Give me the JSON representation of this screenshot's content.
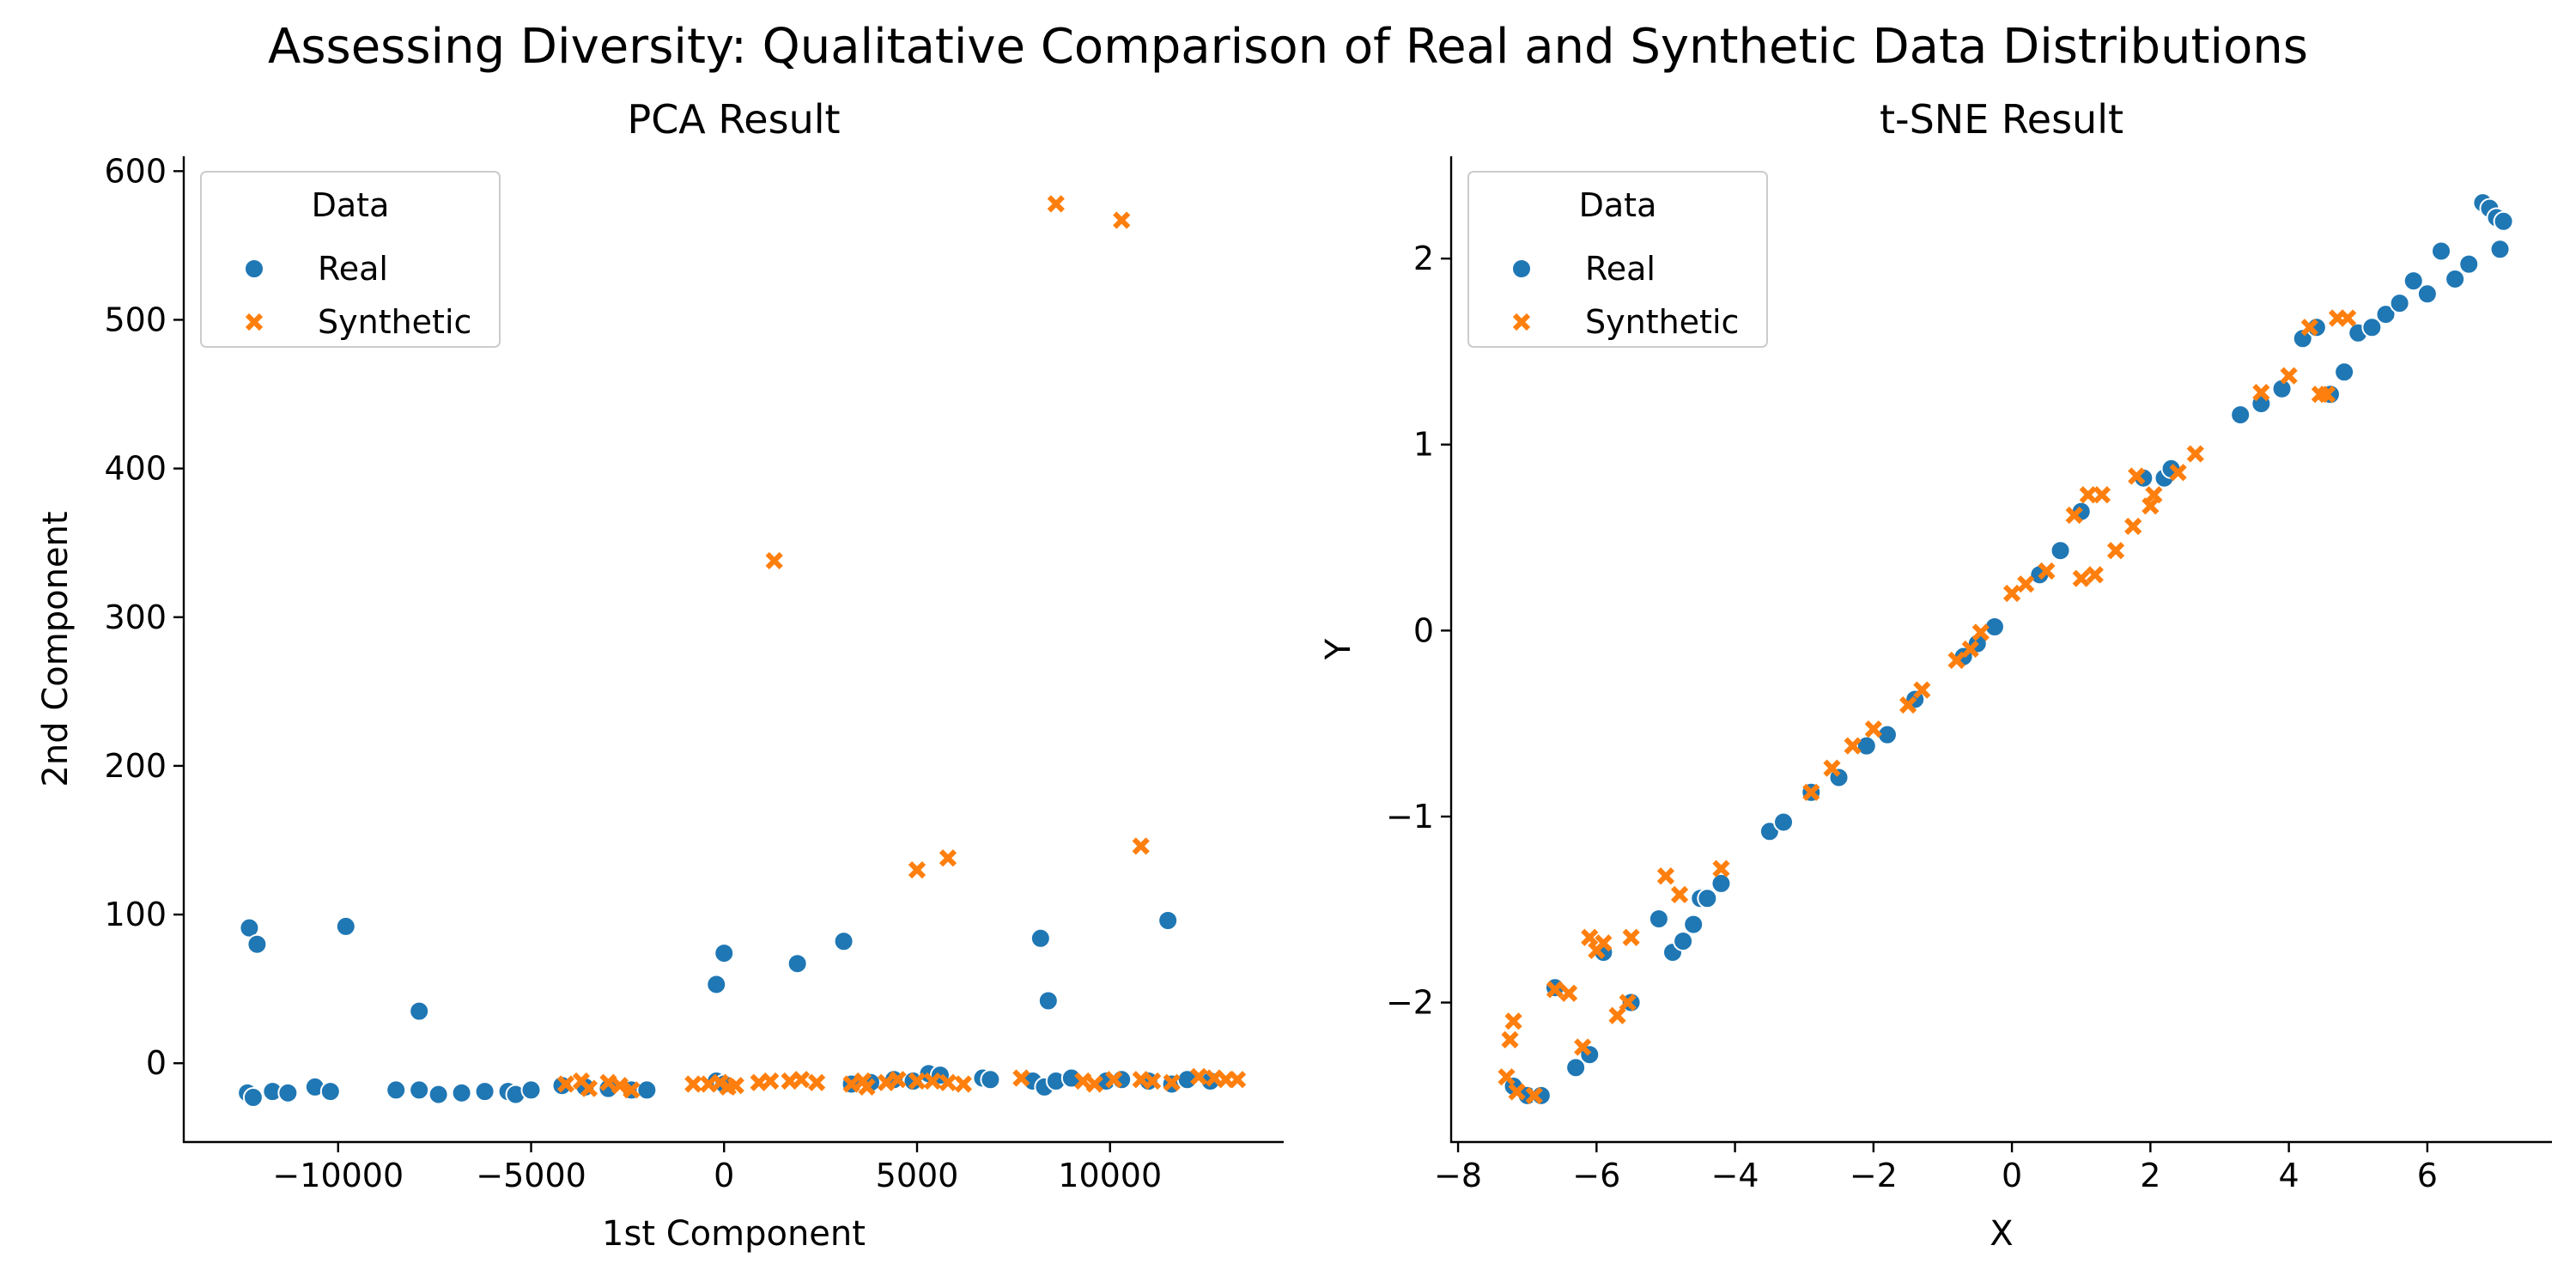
{
  "title": "Assessing Diversity: Qualitative Comparison of Real and Synthetic Data Distributions",
  "colors": {
    "real": "#1f77b4",
    "synthetic": "#ff7f0e"
  },
  "chart_data": [
    {
      "type": "scatter",
      "title": "PCA Result",
      "xlabel": "1st Component",
      "ylabel": "2nd Component",
      "xlim": [
        -14000,
        14500
      ],
      "ylim": [
        -53,
        610
      ],
      "xticks": [
        -10000,
        -5000,
        0,
        5000,
        10000
      ],
      "xtick_labels": [
        "−10000",
        "−5000",
        "0",
        "5000",
        "10000"
      ],
      "yticks": [
        0,
        100,
        200,
        300,
        400,
        500,
        600
      ],
      "ytick_labels": [
        "0",
        "100",
        "200",
        "300",
        "400",
        "500",
        "600"
      ],
      "legend": {
        "title": "Data",
        "placement": "upper-left",
        "entries": [
          "Real",
          "Synthetic"
        ]
      },
      "series": [
        {
          "name": "Real",
          "marker": "circle",
          "x": [
            -12350,
            -12200,
            -11700,
            -11300,
            -10600,
            -10200,
            -9800,
            -8500,
            -7900,
            -7900,
            -7400,
            -6800,
            -6200,
            -5600,
            -5400,
            -5000,
            -4200,
            -3600,
            -3000,
            -2400,
            -2000,
            -200,
            -200,
            0,
            0,
            1900,
            3100,
            3300,
            3800,
            4400,
            4900,
            5300,
            5600,
            6700,
            6900,
            8000,
            8300,
            8200,
            8400,
            8600,
            9000,
            9900,
            10300,
            11000,
            11500,
            11600,
            12000,
            12600
          ],
          "y": [
            -20,
            -23,
            -19,
            -20,
            -16,
            -19,
            92,
            -18,
            35,
            -18,
            -21,
            -20,
            -19,
            -19,
            -21,
            -18,
            -15,
            -16,
            -17,
            -18,
            -18,
            53,
            -12,
            74,
            -14,
            67,
            82,
            -14,
            -13,
            -11,
            -12,
            -7,
            -8,
            -10,
            -11,
            -12,
            -16,
            84,
            42,
            -12,
            -10,
            -12,
            -11,
            -12,
            96,
            -14,
            -11,
            -12
          ]
        },
        {
          "name": "Real",
          "marker": "circle",
          "x": [
            -12300,
            -12100
          ],
          "y": [
            91,
            80
          ]
        },
        {
          "name": "Synthetic",
          "marker": "x",
          "x": [
            -4100,
            -3700,
            -3500,
            -3000,
            -2700,
            -2400,
            -800,
            -400,
            -100,
            100,
            300,
            900,
            1200,
            1300,
            1700,
            2000,
            2400,
            3300,
            3600,
            3700,
            4200,
            4500,
            5000,
            5400,
            5800,
            6200,
            7700,
            8600,
            9300,
            9600,
            10100,
            10300,
            10800,
            11100,
            11600,
            12300,
            12700,
            13000,
            13300,
            5000,
            5800,
            10800
          ],
          "y": [
            -14,
            -12,
            -17,
            -13,
            -15,
            -18,
            -14,
            -14,
            -13,
            -16,
            -15,
            -13,
            -12,
            338,
            -12,
            -11,
            -13,
            -14,
            -12,
            -16,
            -13,
            -11,
            -12,
            -12,
            -13,
            -14,
            -10,
            578,
            -12,
            -14,
            -11,
            567,
            -11,
            -12,
            -13,
            -9,
            -10,
            -11,
            -11,
            130,
            138,
            146
          ]
        }
      ]
    },
    {
      "type": "scatter",
      "title": "t-SNE Result",
      "xlabel": "X",
      "ylabel": "Y",
      "xlim": [
        -8.1,
        7.8
      ],
      "ylim": [
        -2.75,
        2.55
      ],
      "xticks": [
        -8,
        -6,
        -4,
        -2,
        0,
        2,
        4,
        6
      ],
      "xtick_labels": [
        "−8",
        "−6",
        "−4",
        "−2",
        "0",
        "2",
        "4",
        "6"
      ],
      "yticks": [
        -2,
        -1,
        0,
        1,
        2
      ],
      "ytick_labels": [
        "−2",
        "−1",
        "0",
        "1",
        "2"
      ],
      "legend": {
        "title": "Data",
        "placement": "upper-left",
        "entries": [
          "Real",
          "Synthetic"
        ]
      },
      "series": [
        {
          "name": "Real",
          "marker": "circle",
          "x": [
            -7.2,
            -7.0,
            -6.8,
            -6.6,
            -6.3,
            -6.1,
            -5.9,
            -5.5,
            -5.1,
            -4.9,
            -4.75,
            -4.6,
            -4.5,
            -4.4,
            -4.2,
            -3.5,
            -3.3,
            -2.9,
            -2.5,
            -2.1,
            -1.8,
            -1.4,
            -0.7,
            -0.5,
            -0.25,
            0.4,
            0.7,
            1.0,
            1.9,
            2.2,
            2.3,
            3.3,
            3.6,
            3.9,
            4.2,
            4.4,
            4.6,
            4.8,
            5.0,
            5.2,
            5.4,
            5.6,
            5.8,
            6.0,
            6.2,
            6.4,
            6.6,
            6.8,
            6.9,
            7.0,
            7.05,
            7.1
          ],
          "y": [
            -2.45,
            -2.5,
            -2.5,
            -1.92,
            -2.35,
            -2.28,
            -1.73,
            -2.0,
            -1.55,
            -1.73,
            -1.67,
            -1.58,
            -1.44,
            -1.44,
            -1.36,
            -1.08,
            -1.03,
            -0.87,
            -0.79,
            -0.62,
            -0.56,
            -0.37,
            -0.14,
            -0.07,
            0.02,
            0.3,
            0.43,
            0.64,
            0.82,
            0.82,
            0.87,
            1.16,
            1.22,
            1.3,
            1.57,
            1.63,
            1.27,
            1.39,
            1.6,
            1.63,
            1.7,
            1.76,
            1.88,
            1.81,
            2.04,
            1.89,
            1.97,
            2.3,
            2.27,
            2.22,
            2.05,
            2.2
          ]
        },
        {
          "name": "Synthetic",
          "marker": "x",
          "x": [
            -7.3,
            -7.25,
            -7.2,
            -7.15,
            -6.9,
            -6.6,
            -6.4,
            -6.2,
            -6.1,
            -6.0,
            -5.9,
            -5.7,
            -5.55,
            -5.5,
            -5.0,
            -4.8,
            -4.2,
            -2.9,
            -2.6,
            -2.3,
            -2.0,
            -1.5,
            -1.3,
            -0.8,
            -0.6,
            -0.45,
            0.0,
            0.2,
            0.5,
            0.9,
            1.0,
            1.1,
            1.2,
            1.3,
            1.5,
            1.75,
            1.8,
            2.0,
            2.05,
            2.4,
            2.65,
            3.6,
            4.0,
            4.3,
            4.45,
            4.55,
            4.7,
            4.85
          ],
          "y": [
            -2.4,
            -2.2,
            -2.1,
            -2.48,
            -2.5,
            -1.93,
            -1.95,
            -2.24,
            -1.65,
            -1.72,
            -1.68,
            -2.07,
            -2.0,
            -1.65,
            -1.32,
            -1.42,
            -1.28,
            -0.87,
            -0.74,
            -0.62,
            -0.53,
            -0.4,
            -0.32,
            -0.16,
            -0.1,
            -0.01,
            0.2,
            0.25,
            0.32,
            0.62,
            0.28,
            0.73,
            0.3,
            0.73,
            0.43,
            0.56,
            0.83,
            0.67,
            0.73,
            0.85,
            0.95,
            1.28,
            1.37,
            1.63,
            1.27,
            1.27,
            1.68,
            1.68
          ]
        }
      ]
    }
  ]
}
